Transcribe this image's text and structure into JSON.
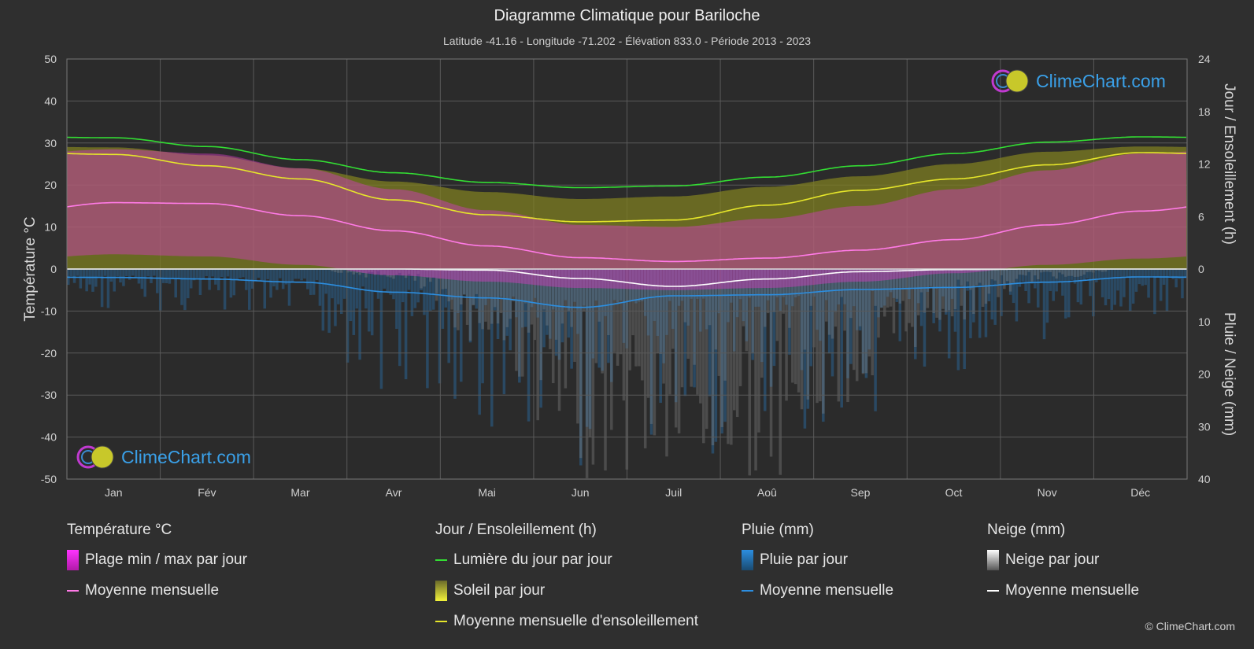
{
  "title": "Diagramme Climatique pour Bariloche",
  "subtitle": "Latitude -41.16 - Longitude -71.202 - Élévation 833.0 - Période 2013 - 2023",
  "copyright": "© ClimeChart.com",
  "logo_text": "ClimeChart.com",
  "colors": {
    "background": "#2f2f2f",
    "plot_bg": "#2b2b2b",
    "grid": "#5a5a5a",
    "daylight": "#33dd33",
    "sunshine_mean": "#e6e62a",
    "sunshine_fill": "#7f7f22",
    "temp_range": "#d43cc0",
    "temp_mean": "#ff7ae6",
    "rain_bar": "#2a6fa8",
    "rain_mean": "#2c8ee0",
    "snow_bar": "#8a8a8a",
    "snow_mean": "#ffffff"
  },
  "legend": {
    "temperature": {
      "title": "Température °C",
      "items": [
        "Plage min / max par jour",
        "Moyenne mensuelle"
      ]
    },
    "sun": {
      "title": "Jour / Ensoleillement (h)",
      "items": [
        "Lumière du jour par jour",
        "Soleil par jour",
        "Moyenne mensuelle d'ensoleillement"
      ]
    },
    "rain": {
      "title": "Pluie (mm)",
      "items": [
        "Pluie par jour",
        "Moyenne mensuelle"
      ]
    },
    "snow": {
      "title": "Neige (mm)",
      "items": [
        "Neige par jour",
        "Moyenne mensuelle"
      ]
    }
  },
  "chart_data": {
    "type": "area",
    "categories": [
      "Jan",
      "Fév",
      "Mar",
      "Avr",
      "Mai",
      "Jun",
      "Juil",
      "Aoû",
      "Sep",
      "Oct",
      "Nov",
      "Déc"
    ],
    "y_left": {
      "label": "Température °C",
      "ylim": [
        -50,
        50
      ],
      "ticks": [
        50,
        40,
        30,
        20,
        10,
        0,
        -10,
        -20,
        -30,
        -40,
        -50
      ]
    },
    "y_right_top": {
      "label": "Jour / Ensoleillement (h)",
      "ylim": [
        0,
        24
      ],
      "ticks": [
        24,
        18,
        12,
        6,
        0
      ]
    },
    "y_right_bottom": {
      "label": "Pluie / Neige (mm)",
      "ylim": [
        0,
        40
      ],
      "ticks": [
        0,
        10,
        20,
        30,
        40
      ]
    },
    "grid": true,
    "series": [
      {
        "name": "Lumière du jour par jour",
        "unit": "h",
        "values": [
          15.0,
          14.0,
          12.5,
          11.0,
          9.9,
          9.3,
          9.5,
          10.5,
          11.8,
          13.2,
          14.5,
          15.1
        ]
      },
      {
        "name": "Moyenne mensuelle d'ensoleillement",
        "unit": "h",
        "values": [
          13.1,
          11.8,
          10.3,
          7.9,
          6.2,
          5.4,
          5.6,
          7.3,
          9.0,
          10.3,
          11.9,
          13.3
        ]
      },
      {
        "name": "Soleil par jour",
        "unit": "h",
        "values": [
          13.9,
          13.0,
          11.5,
          10.0,
          8.8,
          8.0,
          8.3,
          9.4,
          10.6,
          12.0,
          13.4,
          14.0
        ]
      },
      {
        "name": "Température moyenne mensuelle",
        "unit": "°C",
        "values": [
          15.8,
          15.6,
          12.7,
          9.1,
          5.5,
          2.7,
          1.8,
          2.6,
          4.5,
          7.0,
          10.5,
          13.8
        ]
      },
      {
        "name": "Plage min / max par jour - max",
        "unit": "°C",
        "values": [
          28.5,
          27.5,
          24.0,
          19.0,
          14.0,
          10.5,
          10.0,
          12.0,
          15.0,
          19.0,
          23.5,
          27.5
        ]
      },
      {
        "name": "Plage min / max par jour - min",
        "unit": "°C",
        "values": [
          3.5,
          3.0,
          1.0,
          -1.5,
          -3.0,
          -4.5,
          -5.0,
          -4.5,
          -3.0,
          -1.0,
          1.0,
          2.5
        ]
      },
      {
        "name": "Pluie moyenne mensuelle",
        "unit": "mm",
        "values": [
          1.6,
          1.9,
          2.5,
          4.4,
          5.5,
          7.3,
          5.1,
          4.9,
          3.9,
          3.5,
          2.5,
          1.5
        ]
      },
      {
        "name": "Neige moyenne mensuelle",
        "unit": "mm",
        "values": [
          0.0,
          0.0,
          0.0,
          0.0,
          0.2,
          1.8,
          3.3,
          1.9,
          0.5,
          0.1,
          0.0,
          0.0
        ]
      },
      {
        "name": "Pluie par jour (max)",
        "unit": "mm",
        "values": [
          8,
          9,
          12,
          25,
          32,
          40,
          38,
          36,
          28,
          20,
          14,
          9
        ]
      },
      {
        "name": "Neige par jour (max)",
        "unit": "mm",
        "values": [
          0,
          0,
          0,
          2,
          15,
          40,
          40,
          40,
          25,
          10,
          2,
          0
        ]
      }
    ]
  }
}
